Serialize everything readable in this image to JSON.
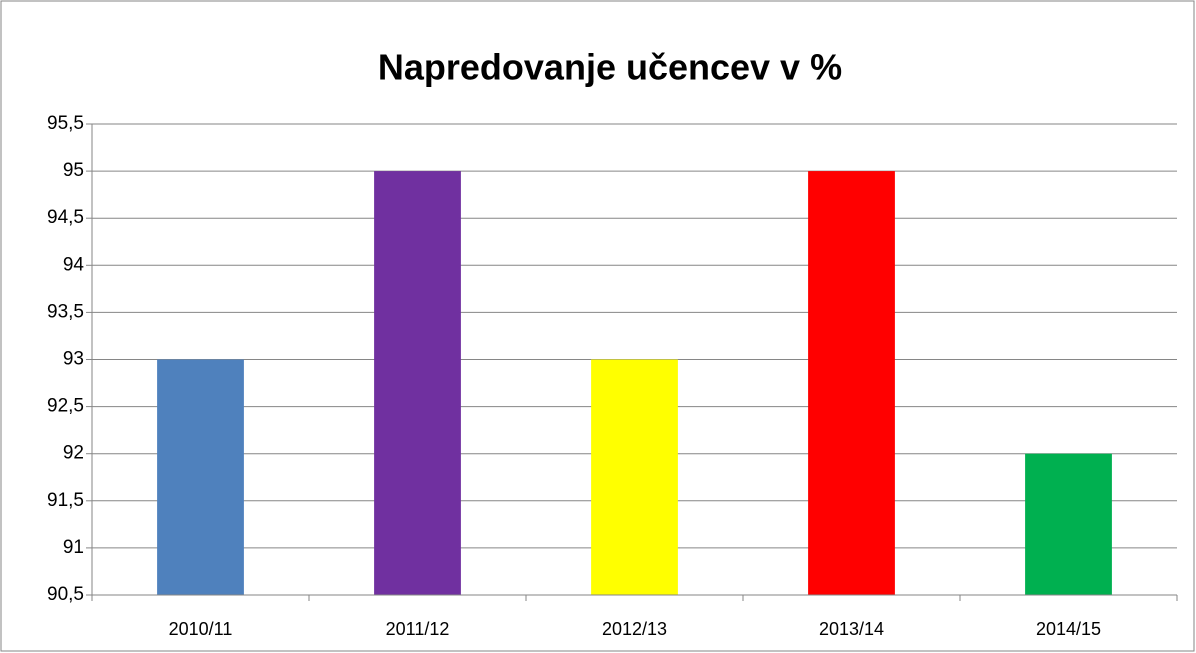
{
  "chart_data": {
    "type": "bar",
    "title": "Napredovanje učencev v %",
    "categories": [
      "2010/11",
      "2011/12",
      "2012/13",
      "2013/14",
      "2014/15"
    ],
    "values": [
      93,
      95,
      93,
      95,
      92
    ],
    "colors": [
      "#4f81bd",
      "#7030a0",
      "#ffff00",
      "#ff0000",
      "#00b050"
    ],
    "ylim": [
      90.5,
      95.5
    ],
    "yticks": [
      {
        "value": 90.5,
        "label": "90,5"
      },
      91,
      {
        "value": 91.5,
        "label": "91,5"
      },
      92,
      {
        "value": 92.5,
        "label": "92,5"
      },
      93,
      {
        "value": 93.5,
        "label": "93,5"
      },
      94,
      {
        "value": 94.5,
        "label": "94,5"
      },
      95,
      {
        "value": 95.5,
        "label": "95,5"
      }
    ],
    "grid": true
  }
}
